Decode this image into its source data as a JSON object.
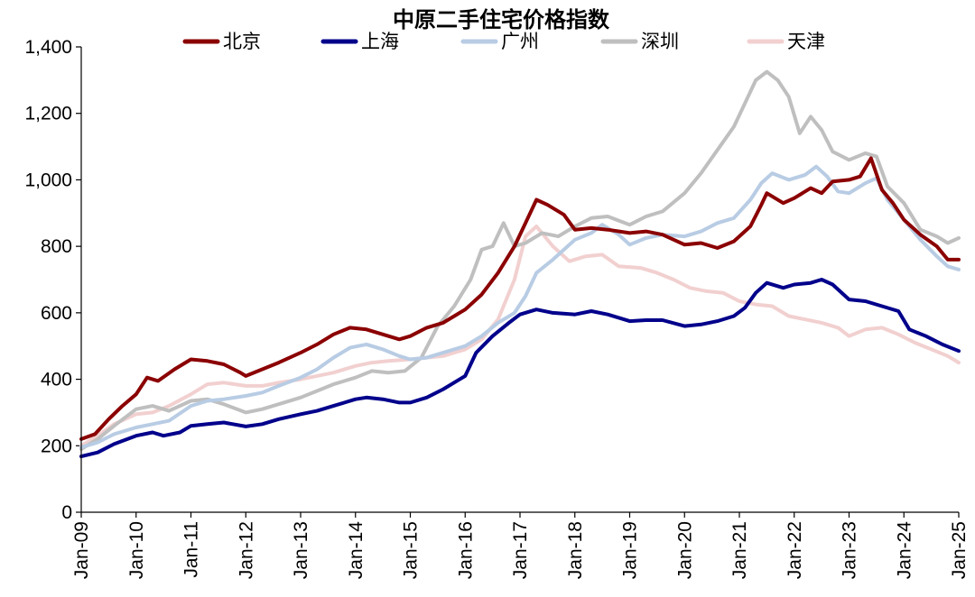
{
  "chart_data": {
    "type": "line",
    "title": "中原二手住宅价格指数",
    "xlabel": "",
    "ylabel": "",
    "ylim": [
      0,
      1400
    ],
    "yticks": [
      "0",
      "200",
      "400",
      "600",
      "800",
      "1,000",
      "1,200",
      "1,400"
    ],
    "xticks": [
      "Jan-09",
      "Jan-10",
      "Jan-11",
      "Jan-12",
      "Jan-13",
      "Jan-14",
      "Jan-15",
      "Jan-16",
      "Jan-17",
      "Jan-18",
      "Jan-19",
      "Jan-20",
      "Jan-21",
      "Jan-22",
      "Jan-23",
      "Jan-24",
      "Jan-25"
    ],
    "grid": false,
    "legend": "top",
    "series": [
      {
        "name": "北京",
        "color": "#8B0000",
        "points": [
          [
            2009,
            220
          ],
          [
            2009.25,
            235
          ],
          [
            2009.5,
            280
          ],
          [
            2009.75,
            320
          ],
          [
            2010,
            355
          ],
          [
            2010.2,
            405
          ],
          [
            2010.4,
            395
          ],
          [
            2010.7,
            430
          ],
          [
            2011,
            460
          ],
          [
            2011.3,
            455
          ],
          [
            2011.6,
            445
          ],
          [
            2011.9,
            420
          ],
          [
            2012,
            410
          ],
          [
            2012.3,
            430
          ],
          [
            2012.6,
            450
          ],
          [
            2013,
            480
          ],
          [
            2013.3,
            505
          ],
          [
            2013.6,
            535
          ],
          [
            2013.9,
            555
          ],
          [
            2014.2,
            550
          ],
          [
            2014.5,
            535
          ],
          [
            2014.8,
            520
          ],
          [
            2015,
            530
          ],
          [
            2015.3,
            555
          ],
          [
            2015.6,
            570
          ],
          [
            2016,
            610
          ],
          [
            2016.3,
            655
          ],
          [
            2016.6,
            720
          ],
          [
            2016.9,
            800
          ],
          [
            2017.1,
            870
          ],
          [
            2017.3,
            940
          ],
          [
            2017.5,
            925
          ],
          [
            2017.8,
            895
          ],
          [
            2018,
            850
          ],
          [
            2018.3,
            855
          ],
          [
            2018.6,
            850
          ],
          [
            2019,
            840
          ],
          [
            2019.3,
            845
          ],
          [
            2019.6,
            835
          ],
          [
            2020,
            805
          ],
          [
            2020.3,
            810
          ],
          [
            2020.6,
            795
          ],
          [
            2020.9,
            815
          ],
          [
            2021.2,
            860
          ],
          [
            2021.4,
            925
          ],
          [
            2021.5,
            960
          ],
          [
            2021.8,
            930
          ],
          [
            2022,
            945
          ],
          [
            2022.3,
            975
          ],
          [
            2022.5,
            960
          ],
          [
            2022.7,
            995
          ],
          [
            2023,
            1000
          ],
          [
            2023.2,
            1010
          ],
          [
            2023.4,
            1065
          ],
          [
            2023.6,
            970
          ],
          [
            2023.8,
            930
          ],
          [
            2024,
            880
          ],
          [
            2024.3,
            835
          ],
          [
            2024.6,
            800
          ],
          [
            2024.8,
            760
          ],
          [
            2025,
            760
          ]
        ]
      },
      {
        "name": "上海",
        "color": "#00008B",
        "points": [
          [
            2009,
            168
          ],
          [
            2009.3,
            180
          ],
          [
            2009.6,
            205
          ],
          [
            2010,
            230
          ],
          [
            2010.3,
            240
          ],
          [
            2010.5,
            230
          ],
          [
            2010.8,
            240
          ],
          [
            2011,
            260
          ],
          [
            2011.3,
            265
          ],
          [
            2011.6,
            270
          ],
          [
            2012,
            258
          ],
          [
            2012.3,
            265
          ],
          [
            2012.6,
            280
          ],
          [
            2013,
            295
          ],
          [
            2013.3,
            305
          ],
          [
            2013.6,
            320
          ],
          [
            2014,
            340
          ],
          [
            2014.2,
            345
          ],
          [
            2014.5,
            340
          ],
          [
            2014.8,
            330
          ],
          [
            2015,
            330
          ],
          [
            2015.3,
            345
          ],
          [
            2015.6,
            370
          ],
          [
            2016,
            410
          ],
          [
            2016.2,
            480
          ],
          [
            2016.5,
            530
          ],
          [
            2016.8,
            570
          ],
          [
            2017,
            595
          ],
          [
            2017.3,
            610
          ],
          [
            2017.6,
            600
          ],
          [
            2018,
            595
          ],
          [
            2018.3,
            605
          ],
          [
            2018.6,
            595
          ],
          [
            2019,
            575
          ],
          [
            2019.3,
            578
          ],
          [
            2019.6,
            578
          ],
          [
            2020,
            560
          ],
          [
            2020.3,
            565
          ],
          [
            2020.6,
            575
          ],
          [
            2020.9,
            590
          ],
          [
            2021.1,
            615
          ],
          [
            2021.3,
            660
          ],
          [
            2021.5,
            690
          ],
          [
            2021.8,
            675
          ],
          [
            2022,
            685
          ],
          [
            2022.3,
            690
          ],
          [
            2022.5,
            700
          ],
          [
            2022.7,
            685
          ],
          [
            2023,
            640
          ],
          [
            2023.3,
            635
          ],
          [
            2023.6,
            620
          ],
          [
            2023.9,
            605
          ],
          [
            2024.1,
            550
          ],
          [
            2024.4,
            530
          ],
          [
            2024.7,
            505
          ],
          [
            2025,
            485
          ]
        ]
      },
      {
        "name": "广州",
        "color": "#B8CCE4",
        "points": [
          [
            2009,
            195
          ],
          [
            2009.3,
            210
          ],
          [
            2009.6,
            235
          ],
          [
            2010,
            255
          ],
          [
            2010.3,
            265
          ],
          [
            2010.6,
            275
          ],
          [
            2011,
            320
          ],
          [
            2011.3,
            335
          ],
          [
            2011.6,
            340
          ],
          [
            2012,
            350
          ],
          [
            2012.3,
            360
          ],
          [
            2012.6,
            380
          ],
          [
            2013,
            405
          ],
          [
            2013.3,
            430
          ],
          [
            2013.6,
            465
          ],
          [
            2013.9,
            495
          ],
          [
            2014.2,
            505
          ],
          [
            2014.5,
            490
          ],
          [
            2014.8,
            470
          ],
          [
            2015,
            460
          ],
          [
            2015.3,
            465
          ],
          [
            2015.6,
            480
          ],
          [
            2016,
            500
          ],
          [
            2016.3,
            530
          ],
          [
            2016.6,
            570
          ],
          [
            2016.9,
            600
          ],
          [
            2017.1,
            650
          ],
          [
            2017.3,
            720
          ],
          [
            2017.6,
            760
          ],
          [
            2018,
            820
          ],
          [
            2018.3,
            840
          ],
          [
            2018.5,
            865
          ],
          [
            2018.8,
            835
          ],
          [
            2019,
            805
          ],
          [
            2019.3,
            825
          ],
          [
            2019.6,
            835
          ],
          [
            2020,
            830
          ],
          [
            2020.3,
            845
          ],
          [
            2020.6,
            870
          ],
          [
            2020.9,
            885
          ],
          [
            2021.2,
            940
          ],
          [
            2021.4,
            990
          ],
          [
            2021.6,
            1020
          ],
          [
            2021.9,
            1000
          ],
          [
            2022.2,
            1015
          ],
          [
            2022.4,
            1040
          ],
          [
            2022.6,
            1010
          ],
          [
            2022.8,
            965
          ],
          [
            2023,
            960
          ],
          [
            2023.3,
            990
          ],
          [
            2023.5,
            1005
          ],
          [
            2023.7,
            940
          ],
          [
            2024,
            880
          ],
          [
            2024.3,
            820
          ],
          [
            2024.6,
            770
          ],
          [
            2024.8,
            740
          ],
          [
            2025,
            730
          ]
        ]
      },
      {
        "name": "深圳",
        "color": "#BFBFBF",
        "points": [
          [
            2009,
            190
          ],
          [
            2009.3,
            220
          ],
          [
            2009.6,
            260
          ],
          [
            2010,
            310
          ],
          [
            2010.3,
            320
          ],
          [
            2010.6,
            305
          ],
          [
            2011,
            335
          ],
          [
            2011.3,
            340
          ],
          [
            2011.6,
            325
          ],
          [
            2012,
            300
          ],
          [
            2012.3,
            310
          ],
          [
            2012.6,
            325
          ],
          [
            2013,
            345
          ],
          [
            2013.3,
            365
          ],
          [
            2013.6,
            385
          ],
          [
            2014,
            405
          ],
          [
            2014.3,
            425
          ],
          [
            2014.6,
            420
          ],
          [
            2014.9,
            425
          ],
          [
            2015.2,
            465
          ],
          [
            2015.5,
            560
          ],
          [
            2015.8,
            620
          ],
          [
            2016.1,
            700
          ],
          [
            2016.3,
            790
          ],
          [
            2016.5,
            800
          ],
          [
            2016.7,
            870
          ],
          [
            2016.9,
            800
          ],
          [
            2017.1,
            810
          ],
          [
            2017.4,
            840
          ],
          [
            2017.7,
            830
          ],
          [
            2018,
            860
          ],
          [
            2018.3,
            885
          ],
          [
            2018.6,
            890
          ],
          [
            2019,
            865
          ],
          [
            2019.3,
            890
          ],
          [
            2019.6,
            905
          ],
          [
            2020,
            960
          ],
          [
            2020.3,
            1020
          ],
          [
            2020.6,
            1090
          ],
          [
            2020.9,
            1160
          ],
          [
            2021.1,
            1230
          ],
          [
            2021.3,
            1300
          ],
          [
            2021.5,
            1325
          ],
          [
            2021.7,
            1300
          ],
          [
            2021.9,
            1250
          ],
          [
            2022.1,
            1140
          ],
          [
            2022.3,
            1190
          ],
          [
            2022.5,
            1150
          ],
          [
            2022.7,
            1085
          ],
          [
            2023,
            1060
          ],
          [
            2023.3,
            1080
          ],
          [
            2023.5,
            1070
          ],
          [
            2023.7,
            980
          ],
          [
            2024,
            930
          ],
          [
            2024.3,
            850
          ],
          [
            2024.6,
            830
          ],
          [
            2024.8,
            810
          ],
          [
            2025,
            825
          ]
        ]
      },
      {
        "name": "天津",
        "color": "#F2D0D0",
        "points": [
          [
            2009,
            200
          ],
          [
            2009.3,
            230
          ],
          [
            2009.6,
            265
          ],
          [
            2010,
            295
          ],
          [
            2010.3,
            300
          ],
          [
            2010.6,
            320
          ],
          [
            2011,
            355
          ],
          [
            2011.3,
            385
          ],
          [
            2011.6,
            390
          ],
          [
            2012,
            380
          ],
          [
            2012.3,
            380
          ],
          [
            2012.6,
            390
          ],
          [
            2013,
            400
          ],
          [
            2013.3,
            410
          ],
          [
            2013.6,
            420
          ],
          [
            2014,
            440
          ],
          [
            2014.3,
            450
          ],
          [
            2014.6,
            455
          ],
          [
            2015,
            460
          ],
          [
            2015.3,
            465
          ],
          [
            2015.6,
            470
          ],
          [
            2016,
            490
          ],
          [
            2016.3,
            520
          ],
          [
            2016.6,
            580
          ],
          [
            2016.9,
            700
          ],
          [
            2017.1,
            830
          ],
          [
            2017.3,
            860
          ],
          [
            2017.6,
            800
          ],
          [
            2017.9,
            755
          ],
          [
            2018.2,
            770
          ],
          [
            2018.5,
            775
          ],
          [
            2018.8,
            740
          ],
          [
            2019.2,
            735
          ],
          [
            2019.5,
            720
          ],
          [
            2019.8,
            700
          ],
          [
            2020.1,
            675
          ],
          [
            2020.4,
            665
          ],
          [
            2020.7,
            660
          ],
          [
            2021,
            635
          ],
          [
            2021.3,
            625
          ],
          [
            2021.6,
            620
          ],
          [
            2021.9,
            590
          ],
          [
            2022.2,
            580
          ],
          [
            2022.5,
            570
          ],
          [
            2022.8,
            555
          ],
          [
            2023,
            530
          ],
          [
            2023.3,
            550
          ],
          [
            2023.6,
            555
          ],
          [
            2023.9,
            535
          ],
          [
            2024.2,
            510
          ],
          [
            2024.5,
            490
          ],
          [
            2024.8,
            470
          ],
          [
            2025,
            450
          ]
        ]
      }
    ]
  }
}
